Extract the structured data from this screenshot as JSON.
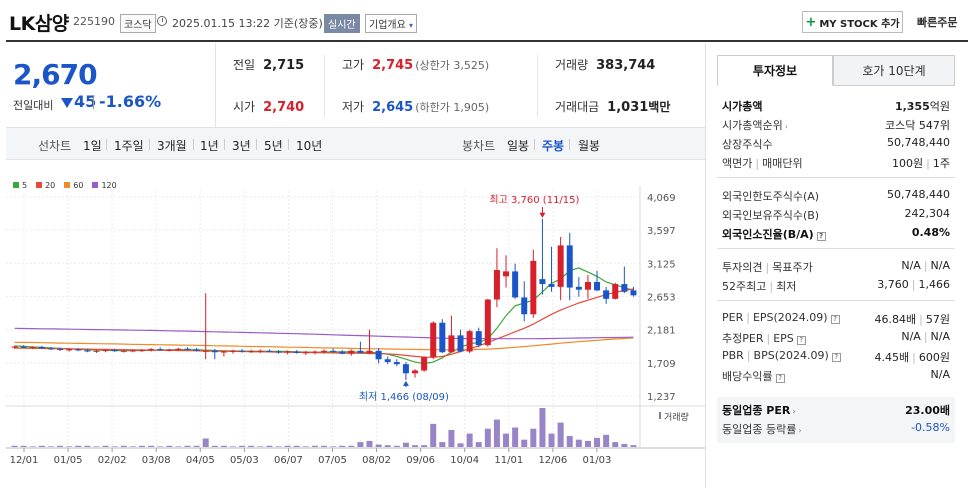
{
  "header": {
    "company": "LK삼양",
    "code": "225190",
    "market": "코스닥",
    "timestamp": "2025.01.15 13:22 기준(장중)",
    "realtime_label": "실시간",
    "overview_label": "기업개요",
    "mystock_label": "MY STOCK 추가",
    "quick_order": "빠른주문"
  },
  "price": {
    "current": "2,670",
    "prev_label": "전일대비",
    "change": "45",
    "change_pct": "-1.66%"
  },
  "stats": {
    "prev_close_label": "전일",
    "prev_close": "2,715",
    "high_label": "고가",
    "high": "2,745",
    "upper_limit": "(상한가 3,525)",
    "volume_label": "거래량",
    "volume": "383,744",
    "open_label": "시가",
    "open": "2,740",
    "low_label": "저가",
    "low": "2,645",
    "lower_limit": "(하한가 1,905)",
    "amount_label": "거래대금",
    "amount": "1,031",
    "amount_unit": "백만"
  },
  "tabs": {
    "line_label": "선차트",
    "line_periods": [
      "1일",
      "1주일",
      "3개월",
      "1년",
      "3년",
      "5년",
      "10년"
    ],
    "candle_label": "봉차트",
    "candle_periods": [
      "일봉",
      "주봉",
      "월봉"
    ],
    "candle_selected": "주봉"
  },
  "colors": {
    "up": "#d6202b",
    "down": "#1a56c8",
    "ma5": "#3aa83a",
    "ma20": "#e64a3a",
    "ma60": "#f08a2a",
    "ma120": "#9a5cc8"
  },
  "chart_data": {
    "type": "candlestick",
    "legend": [
      "5",
      "20",
      "60",
      "120"
    ],
    "y_ticks": [
      "4,069",
      "3,597",
      "3,125",
      "2,653",
      "2,181",
      "1,709",
      "1,237"
    ],
    "ylim": [
      1237,
      4069
    ],
    "x_ticks": [
      "12/01",
      "01/05",
      "02/02",
      "03/08",
      "04/05",
      "05/03",
      "06/07",
      "07/05",
      "08/02",
      "09/06",
      "10/04",
      "11/01",
      "12/06",
      "01/03"
    ],
    "max_annotation": "최고 3,760 (11/15)",
    "min_annotation": "최저 1,466 (08/09)",
    "volume_label": "거래량",
    "candles": [
      [
        1930,
        1950,
        1910,
        1940
      ],
      [
        1940,
        1960,
        1920,
        1925
      ],
      [
        1925,
        1945,
        1905,
        1935
      ],
      [
        1935,
        1950,
        1910,
        1915
      ],
      [
        1915,
        1935,
        1890,
        1905
      ],
      [
        1905,
        1925,
        1880,
        1890
      ],
      [
        1890,
        1915,
        1870,
        1900
      ],
      [
        1900,
        1920,
        1875,
        1885
      ],
      [
        1885,
        1905,
        1860,
        1870
      ],
      [
        1870,
        1895,
        1850,
        1880
      ],
      [
        1880,
        1905,
        1860,
        1890
      ],
      [
        1890,
        1910,
        1865,
        1875
      ],
      [
        1875,
        1895,
        1855,
        1880
      ],
      [
        1880,
        1900,
        1860,
        1885
      ],
      [
        1885,
        1905,
        1865,
        1890
      ],
      [
        1890,
        1920,
        1870,
        1905
      ],
      [
        1905,
        1930,
        1880,
        1890
      ],
      [
        1890,
        1910,
        1870,
        1895
      ],
      [
        1895,
        1920,
        1880,
        1910
      ],
      [
        1910,
        1930,
        1885,
        1900
      ],
      [
        1900,
        1920,
        1870,
        1880
      ],
      [
        1880,
        2700,
        1760,
        1880
      ],
      [
        1880,
        1905,
        1760,
        1860
      ],
      [
        1860,
        1880,
        1800,
        1870
      ],
      [
        1870,
        1895,
        1840,
        1880
      ],
      [
        1880,
        1905,
        1855,
        1870
      ],
      [
        1870,
        1895,
        1850,
        1875
      ],
      [
        1875,
        1900,
        1850,
        1880
      ],
      [
        1880,
        1900,
        1860,
        1870
      ],
      [
        1870,
        1890,
        1840,
        1855
      ],
      [
        1855,
        1885,
        1830,
        1870
      ],
      [
        1870,
        1890,
        1840,
        1850
      ],
      [
        1850,
        1880,
        1820,
        1860
      ],
      [
        1860,
        1885,
        1830,
        1870
      ],
      [
        1870,
        1900,
        1840,
        1880
      ],
      [
        1880,
        1910,
        1850,
        1870
      ],
      [
        1870,
        1890,
        1830,
        1840
      ],
      [
        1840,
        1900,
        1810,
        1880
      ],
      [
        1880,
        2010,
        1860,
        1850
      ],
      [
        1850,
        2180,
        1830,
        1880
      ],
      [
        1880,
        1920,
        1700,
        1760
      ],
      [
        1760,
        1800,
        1690,
        1720
      ],
      [
        1720,
        1760,
        1660,
        1690
      ],
      [
        1690,
        1720,
        1466,
        1560
      ],
      [
        1560,
        1620,
        1500,
        1600
      ],
      [
        1600,
        1800,
        1580,
        1790
      ],
      [
        1790,
        2300,
        1760,
        2280
      ],
      [
        2280,
        2330,
        1850,
        1860
      ],
      [
        1860,
        2380,
        1850,
        2100
      ],
      [
        2100,
        2180,
        1860,
        1870
      ],
      [
        1870,
        2180,
        1850,
        2160
      ],
      [
        2160,
        2210,
        1930,
        1960
      ],
      [
        1960,
        2620,
        1940,
        2610
      ],
      [
        2610,
        3340,
        2500,
        3030
      ],
      [
        2940,
        3240,
        2780,
        3010
      ],
      [
        3010,
        3120,
        2620,
        2640
      ],
      [
        2640,
        2870,
        2300,
        2400
      ],
      [
        2400,
        3320,
        2350,
        3160
      ],
      [
        2900,
        3760,
        2680,
        2830
      ],
      [
        2830,
        3360,
        2720,
        2790
      ],
      [
        2790,
        3500,
        2600,
        3380
      ],
      [
        3380,
        3560,
        2600,
        2780
      ],
      [
        2790,
        2930,
        2650,
        2750
      ],
      [
        2750,
        2960,
        2620,
        2860
      ],
      [
        2860,
        3020,
        2730,
        2740
      ],
      [
        2740,
        2790,
        2550,
        2620
      ],
      [
        2620,
        2850,
        2610,
        2830
      ],
      [
        2830,
        3080,
        2700,
        2720
      ],
      [
        2740,
        2790,
        2650,
        2670
      ]
    ],
    "ma_series": [
      {
        "name": "5",
        "values": [
          1950,
          1945,
          1935,
          1928,
          1920,
          1915,
          1908,
          1900,
          1895,
          1892,
          1888,
          1885,
          1883,
          1882,
          1884,
          1887,
          1890,
          1894,
          1896,
          1897,
          1895,
          1890,
          1885,
          1880,
          1877,
          1876,
          1875,
          1874,
          1873,
          1872,
          1870,
          1866,
          1862,
          1860,
          1862,
          1865,
          1866,
          1864,
          1860,
          1858,
          1850,
          1830,
          1800,
          1760,
          1720,
          1700,
          1720,
          1780,
          1860,
          1930,
          1980,
          2000,
          2050,
          2200,
          2380,
          2520,
          2560,
          2600,
          2720,
          2840,
          2900,
          3020,
          3060,
          3000,
          2940,
          2860,
          2820,
          2780,
          2740
        ]
      },
      {
        "name": "20",
        "values": [
          1920,
          1918,
          1916,
          1914,
          1912,
          1910,
          1908,
          1906,
          1904,
          1902,
          1900,
          1898,
          1896,
          1894,
          1892,
          1890,
          1888,
          1886,
          1884,
          1882,
          1880,
          1878,
          1876,
          1874,
          1872,
          1870,
          1868,
          1866,
          1864,
          1862,
          1860,
          1858,
          1856,
          1854,
          1852,
          1850,
          1848,
          1846,
          1844,
          1842,
          1840,
          1835,
          1828,
          1815,
          1800,
          1790,
          1788,
          1800,
          1830,
          1870,
          1910,
          1950,
          2000,
          2050,
          2100,
          2150,
          2200,
          2260,
          2330,
          2400,
          2460,
          2510,
          2560,
          2600,
          2640,
          2680,
          2710,
          2740,
          2760
        ]
      },
      {
        "name": "60",
        "values": [
          2000,
          2000,
          1998,
          1995,
          1992,
          1990,
          1988,
          1986,
          1984,
          1982,
          1980,
          1978,
          1975,
          1972,
          1970,
          1968,
          1966,
          1964,
          1962,
          1960,
          1958,
          1955,
          1952,
          1950,
          1948,
          1945,
          1942,
          1940,
          1938,
          1935,
          1932,
          1930,
          1928,
          1925,
          1922,
          1920,
          1918,
          1915,
          1912,
          1910,
          1908,
          1906,
          1904,
          1902,
          1900,
          1898,
          1896,
          1895,
          1895,
          1896,
          1898,
          1900,
          1905,
          1912,
          1920,
          1930,
          1940,
          1952,
          1964,
          1976,
          1988,
          2000,
          2010,
          2020,
          2030,
          2040,
          2048,
          2056,
          2064
        ]
      },
      {
        "name": "120",
        "values": [
          2200,
          2198,
          2196,
          2194,
          2192,
          2190,
          2188,
          2186,
          2184,
          2182,
          2180,
          2178,
          2176,
          2174,
          2172,
          2170,
          2168,
          2165,
          2162,
          2160,
          2157,
          2154,
          2151,
          2148,
          2145,
          2142,
          2139,
          2136,
          2133,
          2130,
          2127,
          2124,
          2120,
          2116,
          2112,
          2108,
          2104,
          2100,
          2096,
          2092,
          2088,
          2084,
          2080,
          2076,
          2072,
          2068,
          2064,
          2060,
          2058,
          2056,
          2055,
          2054,
          2053,
          2052,
          2052,
          2052,
          2052,
          2053,
          2054,
          2056,
          2058,
          2060,
          2062,
          2064,
          2066,
          2068,
          2070,
          2072,
          2074
        ]
      }
    ],
    "volume": [
      2,
      2,
      1,
      2,
      1,
      2,
      1,
      2,
      2,
      1,
      2,
      1,
      2,
      1,
      2,
      2,
      1,
      2,
      1,
      2,
      2,
      14,
      2,
      2,
      1,
      2,
      2,
      1,
      2,
      1,
      2,
      2,
      1,
      2,
      2,
      1,
      2,
      2,
      8,
      10,
      4,
      3,
      2,
      7,
      3,
      3,
      38,
      8,
      28,
      6,
      22,
      8,
      30,
      45,
      22,
      32,
      12,
      30,
      64,
      22,
      40,
      18,
      12,
      10,
      15,
      20,
      8,
      5,
      3
    ]
  },
  "info": {
    "tab_invest": "투자정보",
    "tab_quote": "호가 10단계",
    "market_cap_label": "시가총액",
    "market_cap": "1,355",
    "market_cap_unit": "억원",
    "cap_rank_label": "시가총액순위",
    "cap_rank": "코스닥 547위",
    "shares_label": "상장주식수",
    "shares": "50,748,440",
    "face_label": "액면가",
    "trade_unit_label": "매매단위",
    "face": "100원",
    "trade_unit": "1주",
    "foreign_limit_label": "외국인한도주식수(A)",
    "foreign_limit": "50,748,440",
    "foreign_hold_label": "외국인보유주식수(B)",
    "foreign_hold": "242,304",
    "foreign_ratio_label": "외국인소진율(B/A)",
    "foreign_ratio": "0.48%",
    "opinion_label": "투자의견",
    "target_label": "목표주가",
    "opinion": "N/A",
    "target": "N/A",
    "wk52_high_label": "52주최고",
    "wk52_low_label": "최저",
    "wk52_high": "3,760",
    "wk52_low": "1,466",
    "per_label": "PER",
    "eps_label": "EPS(2024.09)",
    "per": "46.84배",
    "eps": "57원",
    "est_per_label": "추정PER",
    "est_eps_label": "EPS",
    "est_per": "N/A",
    "est_eps": "N/A",
    "pbr_label": "PBR",
    "bps_label": "BPS(2024.09)",
    "pbr": "4.45배",
    "bps": "600원",
    "div_label": "배당수익률",
    "div": "N/A",
    "ind_per_label": "동일업종 PER",
    "ind_per": "23.00배",
    "ind_rate_label": "동일업종 등락률",
    "ind_rate": "-0.58%"
  }
}
